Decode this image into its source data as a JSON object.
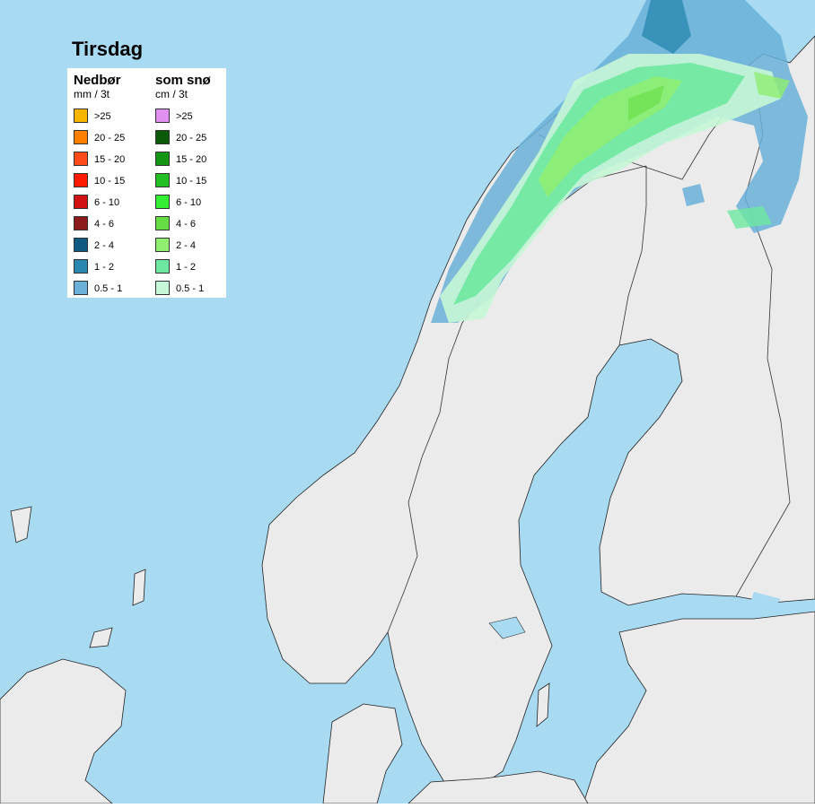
{
  "title": "Tirsdag",
  "legend": {
    "precipitation": {
      "title": "Nedbør",
      "unit": "mm / 3t",
      "items": [
        {
          "label": ">25",
          "color": "#f7b500"
        },
        {
          "label": "20 - 25",
          "color": "#ff8000"
        },
        {
          "label": "15 - 20",
          "color": "#ff4a1a"
        },
        {
          "label": "10 - 15",
          "color": "#ff1a00"
        },
        {
          "label": "6 - 10",
          "color": "#d01212"
        },
        {
          "label": "4 - 6",
          "color": "#8b1a1a"
        },
        {
          "label": "2 - 4",
          "color": "#0e5a80"
        },
        {
          "label": "1 - 2",
          "color": "#2a88b0"
        },
        {
          "label": "0.5 - 1",
          "color": "#6ab0d8"
        }
      ]
    },
    "snow": {
      "title": "som snø",
      "unit": "cm / 3t",
      "items": [
        {
          "label": ">25",
          "color": "#e090f0"
        },
        {
          "label": "20 - 25",
          "color": "#0a5a0a"
        },
        {
          "label": "15 - 20",
          "color": "#149614"
        },
        {
          "label": "10 - 15",
          "color": "#22c022"
        },
        {
          "label": "6 - 10",
          "color": "#33ee33"
        },
        {
          "label": "4 - 6",
          "color": "#66dd44"
        },
        {
          "label": "2 - 4",
          "color": "#90ee70"
        },
        {
          "label": "1 - 2",
          "color": "#6ee8a0"
        },
        {
          "label": "0.5 - 1",
          "color": "#c6f7d6"
        }
      ]
    }
  }
}
